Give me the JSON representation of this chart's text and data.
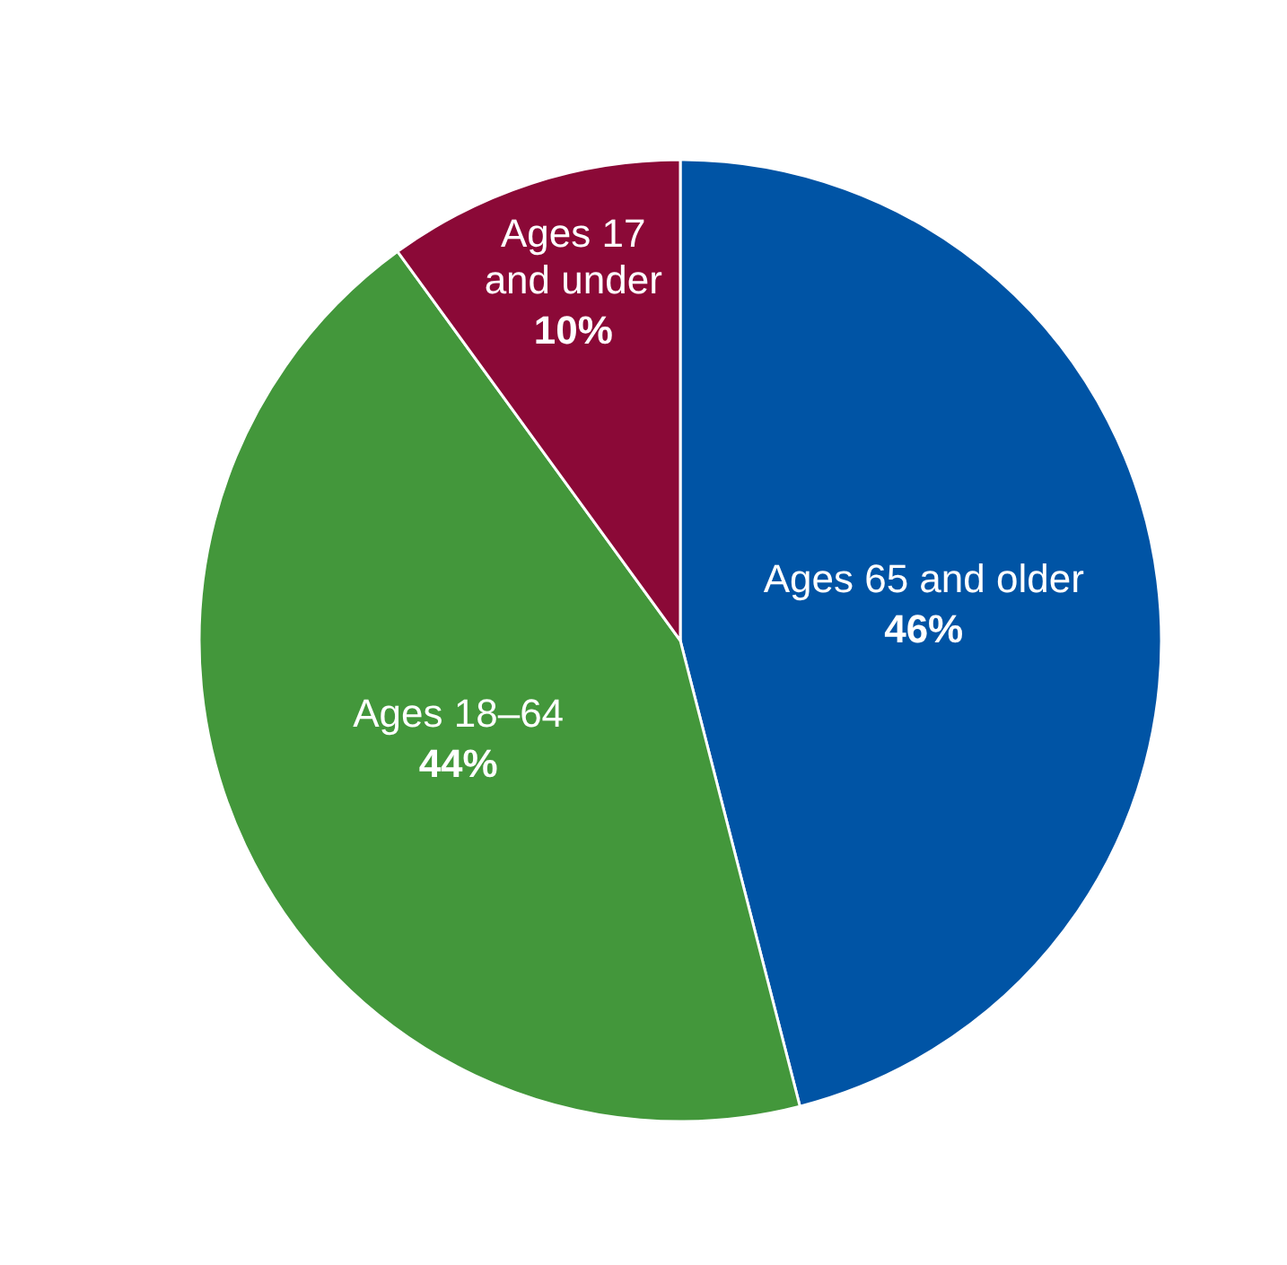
{
  "chart_data": {
    "type": "pie",
    "categories": [
      "Ages 65 and older",
      "Ages 18–64",
      "Ages 17 and under"
    ],
    "values": [
      46,
      44,
      10
    ],
    "colors": [
      "#0054a5",
      "#43973b",
      "#8b0937"
    ],
    "value_labels": [
      "46%",
      "44%",
      "10%"
    ]
  }
}
